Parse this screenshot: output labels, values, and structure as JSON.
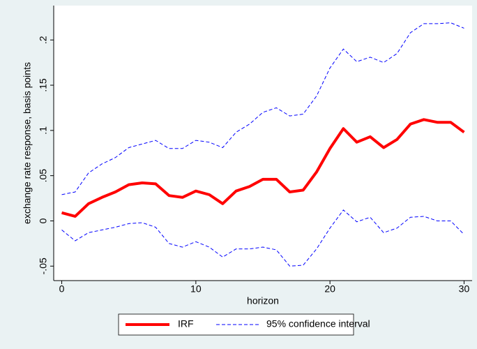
{
  "chart_data": {
    "type": "line",
    "x": [
      0,
      1,
      2,
      3,
      4,
      5,
      6,
      7,
      8,
      9,
      10,
      11,
      12,
      13,
      14,
      15,
      16,
      17,
      18,
      19,
      20,
      21,
      22,
      23,
      24,
      25,
      26,
      27,
      28,
      29,
      30
    ],
    "xlabel": "horizon",
    "ylabel": "exchange rate response, basis points",
    "xlim": [
      -0.6,
      30.6
    ],
    "ylim": [
      -0.066,
      0.238
    ],
    "xticks": [
      0,
      10,
      20,
      30
    ],
    "yticks": [
      {
        "value": -0.05,
        "label": "-.05"
      },
      0,
      {
        "value": 0.05,
        "label": ".05"
      },
      {
        "value": 0.1,
        "label": ".1"
      },
      {
        "value": 0.15,
        "label": ".15"
      },
      {
        "value": 0.2,
        "label": ".2"
      }
    ],
    "series": [
      {
        "name": "IRF",
        "color": "#ff0000",
        "values": [
          0.009,
          0.005,
          0.019,
          0.026,
          0.032,
          0.04,
          0.042,
          0.041,
          0.028,
          0.026,
          0.033,
          0.029,
          0.019,
          0.033,
          0.038,
          0.046,
          0.046,
          0.032,
          0.034,
          0.054,
          0.08,
          0.102,
          0.087,
          0.093,
          0.081,
          0.09,
          0.107,
          0.112,
          0.109,
          0.109,
          0.098
        ]
      },
      {
        "name": "95% confidence interval",
        "color": "#0000ff",
        "upper": [
          0.029,
          0.032,
          0.053,
          0.063,
          0.07,
          0.081,
          0.085,
          0.089,
          0.08,
          0.08,
          0.089,
          0.087,
          0.081,
          0.098,
          0.107,
          0.12,
          0.125,
          0.116,
          0.118,
          0.138,
          0.169,
          0.19,
          0.176,
          0.181,
          0.175,
          0.185,
          0.208,
          0.218,
          0.218,
          0.219,
          0.213
        ],
        "lower": [
          -0.01,
          -0.022,
          -0.013,
          -0.01,
          -0.007,
          -0.003,
          -0.002,
          -0.007,
          -0.025,
          -0.029,
          -0.023,
          -0.029,
          -0.04,
          -0.031,
          -0.031,
          -0.029,
          -0.032,
          -0.05,
          -0.049,
          -0.031,
          -0.008,
          0.012,
          -0.001,
          0.004,
          -0.013,
          -0.008,
          0.004,
          0.005,
          0.0,
          0.0,
          -0.015
        ]
      }
    ]
  }
}
